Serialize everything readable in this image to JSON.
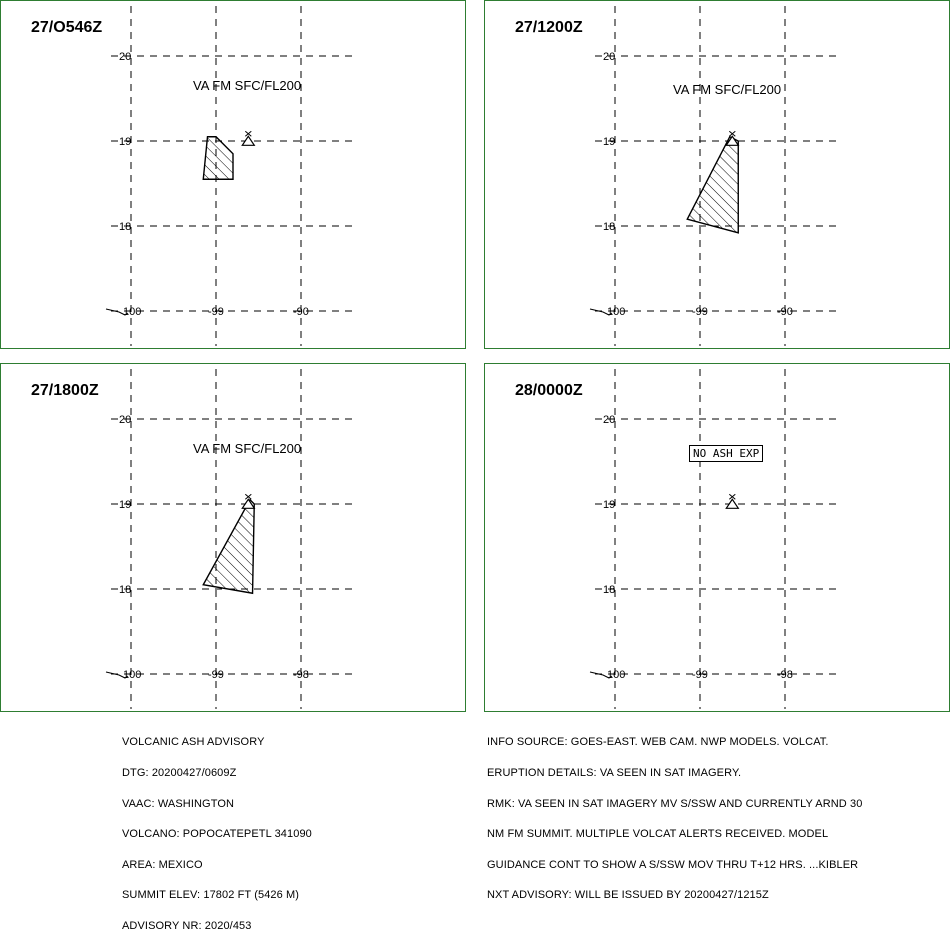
{
  "panels": [
    {
      "time": "27/O546Z",
      "va_label": "VA FM SFC/FL200",
      "status_box": "",
      "x_ticks": [
        "100",
        "-99",
        "-90"
      ],
      "y_ticks": [
        "20",
        "19",
        "18"
      ],
      "ash_polygon": [
        [
          -99.1,
          19.05
        ],
        [
          -99.0,
          19.05
        ],
        [
          -98.8,
          18.85
        ],
        [
          -98.8,
          18.55
        ],
        [
          -99.15,
          18.55
        ]
      ]
    },
    {
      "time": "27/1200Z",
      "va_label": "VA FM SFC/FL200",
      "status_box": "",
      "x_ticks": [
        "100",
        "-99",
        "-90"
      ],
      "y_ticks": [
        "20",
        "19",
        "18"
      ],
      "ash_polygon": [
        [
          -98.65,
          19.05
        ],
        [
          -98.55,
          19.0
        ],
        [
          -98.55,
          17.92
        ],
        [
          -99.15,
          18.08
        ]
      ]
    },
    {
      "time": "27/1800Z",
      "va_label": "VA FM SFC/FL200",
      "status_box": "",
      "x_ticks": [
        "100",
        "-99",
        "-98"
      ],
      "y_ticks": [
        "20",
        "19",
        "18"
      ],
      "ash_polygon": [
        [
          -98.6,
          19.05
        ],
        [
          -98.55,
          19.0
        ],
        [
          -98.57,
          17.95
        ],
        [
          -99.15,
          18.05
        ]
      ]
    },
    {
      "time": "28/0000Z",
      "va_label": "",
      "status_box": "NO ASH EXP",
      "x_ticks": [
        "100",
        "-99",
        "-98"
      ],
      "y_ticks": [
        "20",
        "19",
        "18"
      ],
      "ash_polygon": []
    }
  ],
  "volcano_symbol": "volcano-triangle-icon",
  "volcano_location": [
    -98.62,
    19.02
  ],
  "map_extent": {
    "lon": [
      -100,
      -98
    ],
    "lat": [
      18,
      20
    ]
  },
  "footer_left": [
    "VOLCANIC ASH ADVISORY",
    "DTG: 20200427/0609Z",
    "VAAC: WASHINGTON",
    "VOLCANO: POPOCATEPETL 341090",
    "AREA: MEXICO",
    "SUMMIT ELEV: 17802 FT (5426 M)",
    "ADVISORY NR: 2020/453"
  ],
  "footer_right": [
    "INFO SOURCE: GOES-EAST. WEB CAM. NWP MODELS. VOLCAT.",
    "ERUPTION DETAILS: VA SEEN IN SAT IMAGERY.",
    "RMK: VA SEEN IN SAT IMAGERY MV S/SSW AND CURRENTLY ARND 30",
    "NM FM SUMMIT. MULTIPLE VOLCAT ALERTS RECEIVED. MODEL",
    "GUIDANCE CONT TO SHOW A S/SSW MOV THRU T+12 HRS. ...KIBLER",
    "NXT ADVISORY: WILL BE ISSUED BY 20200427/1215Z"
  ],
  "colors": {
    "border": "#2e7d32",
    "ink": "#000000",
    "background": "#ffffff"
  }
}
